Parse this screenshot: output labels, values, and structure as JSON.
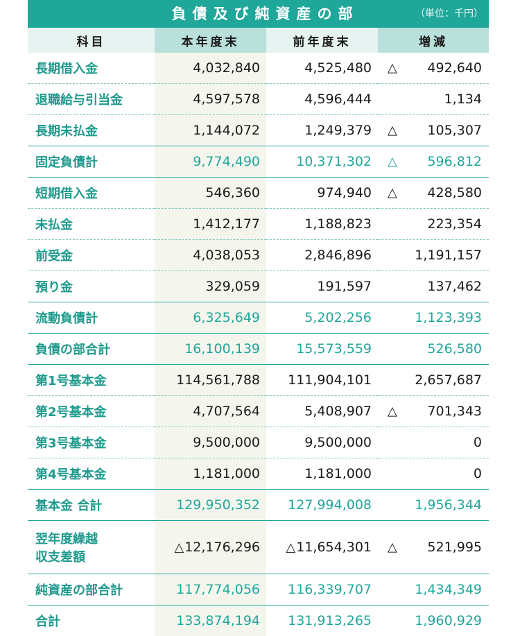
{
  "header": {
    "title": "負債及び純資産の部",
    "unit": "（単位：千円）"
  },
  "columns": {
    "subject": "科目",
    "current": "本年度末",
    "prior": "前年度末",
    "change": "増減"
  },
  "triangle_symbol": "△",
  "rows": [
    {
      "subject": "長期借入金",
      "current": "4,032,840",
      "prior": "4,525,480",
      "change_neg": true,
      "change": "492,640"
    },
    {
      "subject": "退職給与引当金",
      "current": "4,597,578",
      "prior": "4,596,444",
      "change_neg": false,
      "change": "1,134"
    },
    {
      "subject": "長期未払金",
      "current": "1,144,072",
      "prior": "1,249,379",
      "change_neg": true,
      "change": "105,307"
    },
    {
      "subject": "固定負債計",
      "current": "9,774,490",
      "prior": "10,371,302",
      "change_neg": true,
      "change": "596,812",
      "subtotal": true
    },
    {
      "subject": "短期借入金",
      "current": "546,360",
      "prior": "974,940",
      "change_neg": true,
      "change": "428,580"
    },
    {
      "subject": "未払金",
      "current": "1,412,177",
      "prior": "1,188,823",
      "change_neg": false,
      "change": "223,354"
    },
    {
      "subject": "前受金",
      "current": "4,038,053",
      "prior": "2,846,896",
      "change_neg": false,
      "change": "1,191,157"
    },
    {
      "subject": "預り金",
      "current": "329,059",
      "prior": "191,597",
      "change_neg": false,
      "change": "137,462"
    },
    {
      "subject": "流動負債計",
      "current": "6,325,649",
      "prior": "5,202,256",
      "change_neg": false,
      "change": "1,123,393",
      "subtotal": true
    },
    {
      "subject": "負債の部合計",
      "current": "16,100,139",
      "prior": "15,573,559",
      "change_neg": false,
      "change": "526,580",
      "subtotal": true
    },
    {
      "subject": "第1号基本金",
      "current": "114,561,788",
      "prior": "111,904,101",
      "change_neg": false,
      "change": "2,657,687"
    },
    {
      "subject": "第2号基本金",
      "current": "4,707,564",
      "prior": "5,408,907",
      "change_neg": true,
      "change": "701,343"
    },
    {
      "subject": "第3号基本金",
      "current": "9,500,000",
      "prior": "9,500,000",
      "change_neg": false,
      "change": "0"
    },
    {
      "subject": "第4号基本金",
      "current": "1,181,000",
      "prior": "1,181,000",
      "change_neg": false,
      "change": "0",
      "subtotal_border": true
    },
    {
      "subject": "基本金 合計",
      "current": "129,950,352",
      "prior": "127,994,008",
      "change_neg": false,
      "change": "1,956,344",
      "subtotal": true
    },
    {
      "subject_line1": "翌年度繰越",
      "subject_line2": "収支差額",
      "current_neg": true,
      "current": "12,176,296",
      "prior_neg": true,
      "prior": "11,654,301",
      "change_neg": true,
      "change": "521,995",
      "tall": true
    },
    {
      "subject": "純資産の部合計",
      "current": "117,774,056",
      "prior": "116,339,707",
      "change_neg": false,
      "change": "1,434,349",
      "subtotal": true
    },
    {
      "subject": "合計",
      "current": "133,874,194",
      "prior": "131,913,265",
      "change_neg": false,
      "change": "1,960,929",
      "subtotal": true,
      "last": true
    }
  ]
}
